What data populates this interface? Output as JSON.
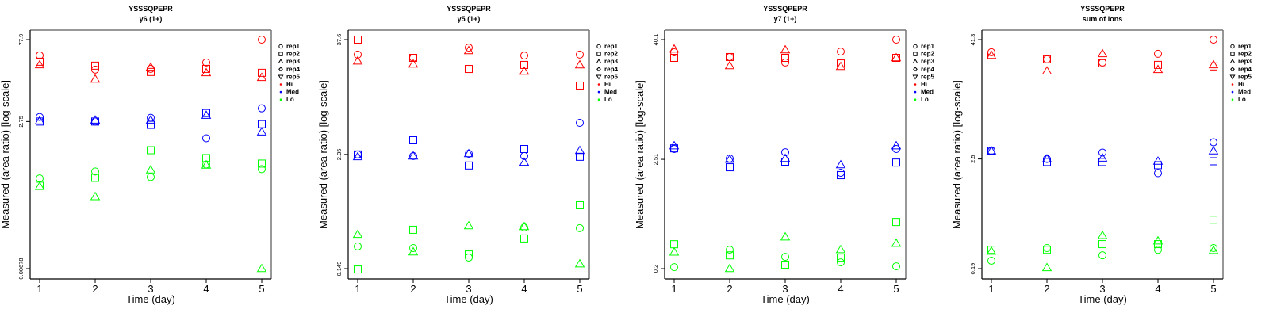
{
  "colors": {
    "Hi": "#ff0000",
    "Med": "#0000ff",
    "Lo": "#00ff00"
  },
  "legend": {
    "items": [
      {
        "label": "rep1",
        "symbol": "circle"
      },
      {
        "label": "rep2",
        "symbol": "square"
      },
      {
        "label": "rep3",
        "symbol": "triangle-up"
      },
      {
        "label": "rep4",
        "symbol": "diamond"
      },
      {
        "label": "rep5",
        "symbol": "triangle-down"
      },
      {
        "label": "Hi",
        "symbol": "dot",
        "color": "#ff0000"
      },
      {
        "label": "Med",
        "symbol": "dot",
        "color": "#0000ff"
      },
      {
        "label": "Lo",
        "symbol": "dot",
        "color": "#00ff00"
      }
    ]
  },
  "chart_data": [
    {
      "type": "scatter",
      "title": "YSSSQPEPR",
      "subtitle": "y6 (1+)",
      "xlabel": "Time (day)",
      "ylabel": "Measured (area ratio) [log-scale]",
      "yscale": "log",
      "x_ticks": [
        "1",
        "2",
        "3",
        "4",
        "5"
      ],
      "y_ticks": [
        {
          "value": 77.9,
          "label": "77.9"
        },
        {
          "value": 2.75,
          "label": "2.75"
        },
        {
          "value": 0.00678,
          "label": "0.00678"
        }
      ],
      "ylim": [
        0.00678,
        77.9
      ],
      "legend_position": "right",
      "series": [
        {
          "group": "Hi",
          "rep": "rep1",
          "x": [
            1,
            2,
            3,
            4,
            5
          ],
          "y": [
            40.9,
            22.9,
            23.6,
            30.6,
            77.9
          ]
        },
        {
          "group": "Hi",
          "rep": "rep2",
          "x": [
            1,
            2,
            3,
            4,
            5
          ],
          "y": [
            31.6,
            26.9,
            20.8,
            23.6,
            20.1
          ]
        },
        {
          "group": "Hi",
          "rep": "rep3",
          "x": [
            1,
            2,
            3,
            4,
            5
          ],
          "y": [
            27.8,
            15.5,
            25.2,
            20.1,
            16.6
          ]
        },
        {
          "group": "Med",
          "rep": "rep1",
          "x": [
            1,
            2,
            3,
            4,
            5
          ],
          "y": [
            3.31,
            2.75,
            3.2,
            1.39,
            4.72
          ]
        },
        {
          "group": "Med",
          "rep": "rep2",
          "x": [
            1,
            2,
            3,
            4,
            5
          ],
          "y": [
            2.75,
            2.75,
            2.4,
            3.89,
            2.47
          ]
        },
        {
          "group": "Med",
          "rep": "rep3",
          "x": [
            1,
            2,
            3,
            4,
            5
          ],
          "y": [
            2.82,
            2.91,
            2.91,
            3.53,
            1.79
          ]
        },
        {
          "group": "Lo",
          "rep": "rep1",
          "x": [
            1,
            2,
            3,
            4,
            5
          ],
          "y": [
            0.27,
            0.358,
            0.285,
            0.478,
            0.394
          ]
        },
        {
          "group": "Lo",
          "rep": "rep2",
          "x": [
            1,
            2,
            3,
            4,
            5
          ],
          "y": [
            0.2,
            0.276,
            0.854,
            0.619,
            0.494
          ]
        },
        {
          "group": "Lo",
          "rep": "rep3",
          "x": [
            1,
            2,
            3,
            4,
            5
          ],
          "y": [
            0.194,
            0.128,
            0.381,
            0.463,
            0.00678
          ]
        }
      ]
    },
    {
      "type": "scatter",
      "title": "YSSSQPEPR",
      "subtitle": "y5 (1+)",
      "xlabel": "Time (day)",
      "ylabel": "Measured (area ratio) [log-scale]",
      "yscale": "log",
      "x_ticks": [
        "1",
        "2",
        "3",
        "4",
        "5"
      ],
      "y_ticks": [
        {
          "value": 37.6,
          "label": "37.6"
        },
        {
          "value": 2.35,
          "label": "2.35"
        },
        {
          "value": 0.149,
          "label": "0.149"
        }
      ],
      "ylim": [
        0.149,
        37.6
      ],
      "legend_position": "right",
      "series": [
        {
          "group": "Hi",
          "rep": "rep1",
          "x": [
            1,
            2,
            3,
            4,
            5
          ],
          "y": [
            26.2,
            24.2,
            31.0,
            25.6,
            26.2
          ]
        },
        {
          "group": "Hi",
          "rep": "rep2",
          "x": [
            1,
            2,
            3,
            4,
            5
          ],
          "y": [
            37.6,
            24.2,
            18.5,
            20.4,
            12.4
          ]
        },
        {
          "group": "Hi",
          "rep": "rep3",
          "x": [
            1,
            2,
            3,
            4,
            5
          ],
          "y": [
            22.4,
            20.8,
            28.8,
            17.5,
            20.4
          ]
        },
        {
          "group": "Med",
          "rep": "rep1",
          "x": [
            1,
            2,
            3,
            4,
            5
          ],
          "y": [
            2.35,
            2.26,
            2.39,
            2.26,
            5.04
          ]
        },
        {
          "group": "Med",
          "rep": "rep2",
          "x": [
            1,
            2,
            3,
            4,
            5
          ],
          "y": [
            2.35,
            3.31,
            1.8,
            2.68,
            2.22
          ]
        },
        {
          "group": "Med",
          "rep": "rep3",
          "x": [
            1,
            2,
            3,
            4,
            5
          ],
          "y": [
            2.22,
            2.26,
            2.39,
            1.94,
            2.58
          ]
        },
        {
          "group": "Lo",
          "rep": "rep1",
          "x": [
            1,
            2,
            3,
            4,
            5
          ],
          "y": [
            0.255,
            0.245,
            0.195,
            0.403,
            0.396
          ]
        },
        {
          "group": "Lo",
          "rep": "rep2",
          "x": [
            1,
            2,
            3,
            4,
            5
          ],
          "y": [
            0.146,
            0.381,
            0.21,
            0.309,
            0.689
          ]
        },
        {
          "group": "Lo",
          "rep": "rep3",
          "x": [
            1,
            2,
            3,
            4,
            5
          ],
          "y": [
            0.34,
            0.223,
            0.419,
            0.411,
            0.167
          ]
        }
      ]
    },
    {
      "type": "scatter",
      "title": "YSSSQPEPR",
      "subtitle": "y7 (1+)",
      "xlabel": "Time (day)",
      "ylabel": "Measured (area ratio) [log-scale]",
      "yscale": "log",
      "x_ticks": [
        "1",
        "2",
        "3",
        "4",
        "5"
      ],
      "y_ticks": [
        {
          "value": 40.1,
          "label": "40.1"
        },
        {
          "value": 2.51,
          "label": "2.51"
        },
        {
          "value": 0.2,
          "label": "0.2"
        }
      ],
      "ylim": [
        0.2,
        40.1
      ],
      "legend_position": "right",
      "series": [
        {
          "group": "Hi",
          "rep": "rep1",
          "x": [
            1,
            2,
            3,
            4,
            5
          ],
          "y": [
            29.9,
            26.8,
            23.6,
            30.4,
            40.1
          ]
        },
        {
          "group": "Hi",
          "rep": "rep2",
          "x": [
            1,
            2,
            3,
            4,
            5
          ],
          "y": [
            26.3,
            26.8,
            26.3,
            23.1,
            26.3
          ]
        },
        {
          "group": "Hi",
          "rep": "rep3",
          "x": [
            1,
            2,
            3,
            4,
            5
          ],
          "y": [
            32.2,
            21.9,
            31.6,
            21.5,
            26.3
          ]
        },
        {
          "group": "Med",
          "rep": "rep1",
          "x": [
            1,
            2,
            3,
            4,
            5
          ],
          "y": [
            3.19,
            2.56,
            2.96,
            1.84,
            3.19
          ]
        },
        {
          "group": "Med",
          "rep": "rep2",
          "x": [
            1,
            2,
            3,
            4,
            5
          ],
          "y": [
            3.24,
            2.09,
            2.38,
            1.74,
            2.33
          ]
        },
        {
          "group": "Med",
          "rep": "rep3",
          "x": [
            1,
            2,
            3,
            4,
            5
          ],
          "y": [
            3.43,
            2.51,
            2.56,
            2.21,
            3.43
          ]
        },
        {
          "group": "Lo",
          "rep": "rep1",
          "x": [
            1,
            2,
            3,
            4,
            5
          ],
          "y": [
            0.207,
            0.31,
            0.263,
            0.231,
            0.211
          ]
        },
        {
          "group": "Lo",
          "rep": "rep2",
          "x": [
            1,
            2,
            3,
            4,
            5
          ],
          "y": [
            0.352,
            0.272,
            0.219,
            0.258,
            0.589
          ]
        },
        {
          "group": "Lo",
          "rep": "rep3",
          "x": [
            1,
            2,
            3,
            4,
            5
          ],
          "y": [
            0.293,
            0.2,
            0.416,
            0.31,
            0.359
          ]
        }
      ]
    },
    {
      "type": "scatter",
      "title": "YSSSQPEPR",
      "subtitle": "sum of ions",
      "xlabel": "Time (day)",
      "ylabel": "Measured (area ratio) [log-scale]",
      "yscale": "log",
      "x_ticks": [
        "1",
        "2",
        "3",
        "4",
        "5"
      ],
      "y_ticks": [
        {
          "value": 41.3,
          "label": "41.3"
        },
        {
          "value": 2.5,
          "label": "2.5"
        },
        {
          "value": 0.19,
          "label": "0.19"
        }
      ],
      "ylim": [
        0.19,
        41.3
      ],
      "legend_position": "right",
      "series": [
        {
          "group": "Hi",
          "rep": "rep1",
          "x": [
            1,
            2,
            3,
            4,
            5
          ],
          "y": [
            30.7,
            26.0,
            24.1,
            29.6,
            41.3
          ]
        },
        {
          "group": "Hi",
          "rep": "rep2",
          "x": [
            1,
            2,
            3,
            4,
            5
          ],
          "y": [
            28.5,
            26.0,
            23.7,
            22.8,
            22.0
          ]
        },
        {
          "group": "Hi",
          "rep": "rep3",
          "x": [
            1,
            2,
            3,
            4,
            5
          ],
          "y": [
            28.5,
            19.7,
            29.6,
            20.4,
            22.8
          ]
        },
        {
          "group": "Med",
          "rep": "rep1",
          "x": [
            1,
            2,
            3,
            4,
            5
          ],
          "y": [
            3.02,
            2.5,
            2.91,
            1.79,
            3.7
          ]
        },
        {
          "group": "Med",
          "rep": "rep2",
          "x": [
            1,
            2,
            3,
            4,
            5
          ],
          "y": [
            3.02,
            2.33,
            2.33,
            2.16,
            2.37
          ]
        },
        {
          "group": "Med",
          "rep": "rep3",
          "x": [
            1,
            2,
            3,
            4,
            5
          ],
          "y": [
            3.02,
            2.5,
            2.55,
            2.37,
            3.02
          ]
        },
        {
          "group": "Lo",
          "rep": "rep1",
          "x": [
            1,
            2,
            3,
            4,
            5
          ],
          "y": [
            0.229,
            0.308,
            0.26,
            0.296,
            0.308
          ]
        },
        {
          "group": "Lo",
          "rep": "rep2",
          "x": [
            1,
            2,
            3,
            4,
            5
          ],
          "y": [
            0.296,
            0.296,
            0.338,
            0.338,
            0.6
          ]
        },
        {
          "group": "Lo",
          "rep": "rep3",
          "x": [
            1,
            2,
            3,
            4,
            5
          ],
          "y": [
            0.286,
            0.194,
            0.414,
            0.364,
            0.291
          ]
        }
      ]
    }
  ]
}
